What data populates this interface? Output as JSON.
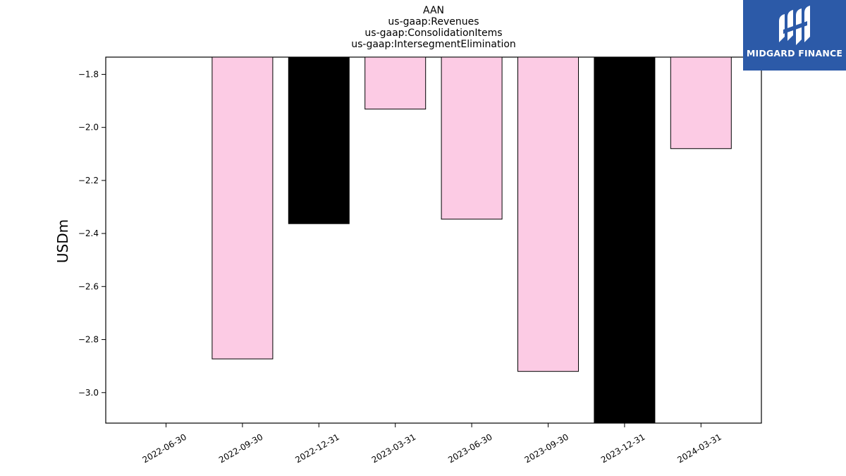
{
  "chart_data": {
    "type": "bar",
    "title_lines": [
      "AAN",
      "us-gaap:Revenues",
      "us-gaap:ConsolidationItems",
      "us-gaap:IntersegmentElimination"
    ],
    "xlabel": "",
    "ylabel": "USDm",
    "categories": [
      "2022-06-30",
      "2022-09-30",
      "2022-12-31",
      "2023-03-31",
      "2023-06-30",
      "2023-09-30",
      "2023-12-31",
      "2024-03-31"
    ],
    "values": [
      null,
      -2.873,
      -2.363,
      -1.931,
      -2.346,
      -2.92,
      -3.15,
      -2.08
    ],
    "bar_colors": [
      null,
      "#fccbe4",
      "#000000",
      "#fccbe4",
      "#fccbe4",
      "#fccbe4",
      "#000000",
      "#fccbe4"
    ],
    "ylim": [
      -3.115,
      -1.735
    ],
    "yticks": [
      -1.8,
      -2.0,
      -2.2,
      -2.4,
      -2.6,
      -2.8,
      -3.0
    ],
    "ytick_labels": [
      "−1.8",
      "−2.0",
      "−2.2",
      "−2.4",
      "−2.6",
      "−2.8",
      "−3.0"
    ],
    "grid": false
  },
  "logo": {
    "text": "MIDGARD FINANCE",
    "icon": "midgard-logo-icon",
    "background": "#2c5aa8"
  }
}
